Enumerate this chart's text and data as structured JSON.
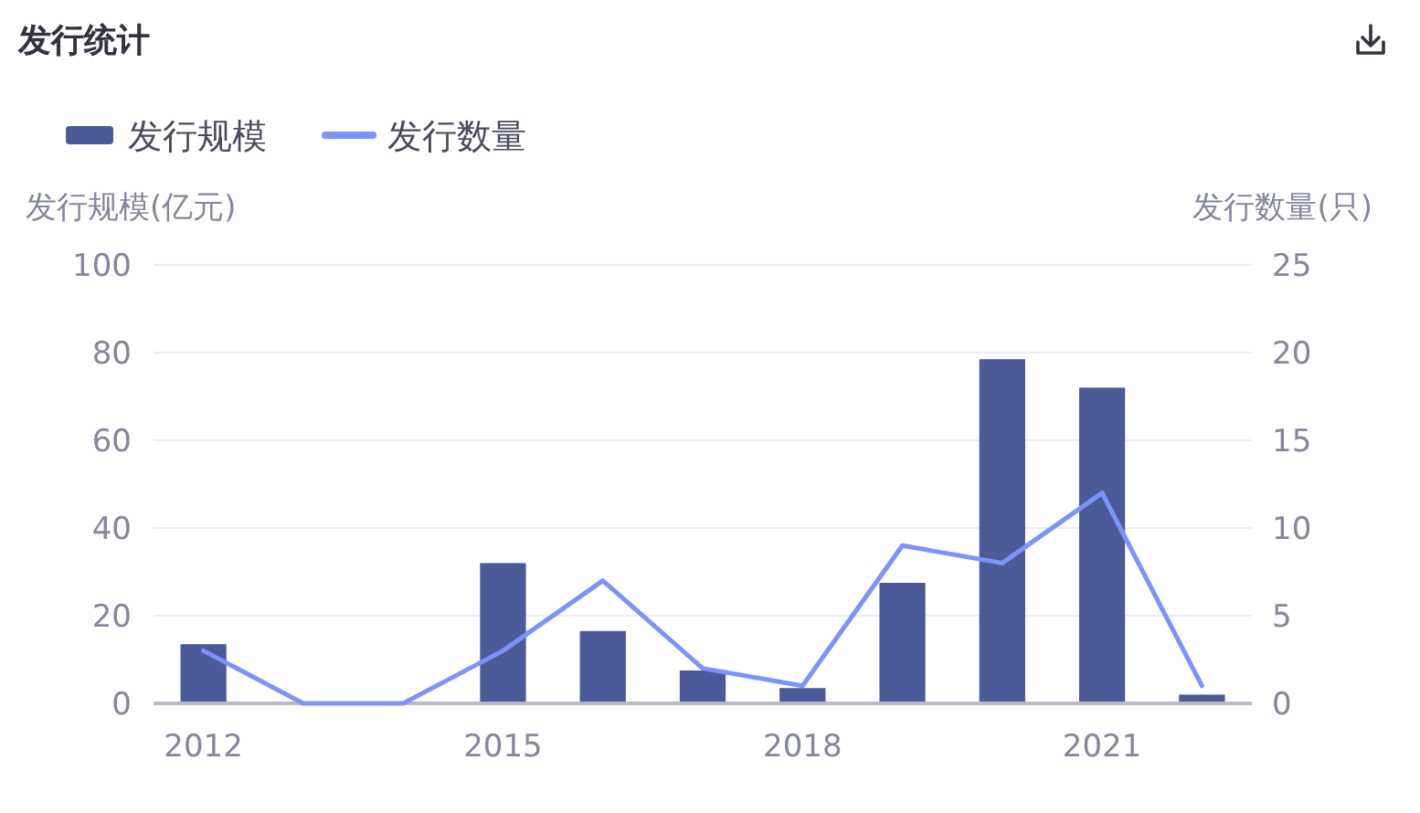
{
  "chart_data": {
    "type": "bar",
    "title": "发行统计",
    "categories": [
      "2012",
      null,
      null,
      "2015",
      null,
      null,
      "2018",
      null,
      null,
      "2021",
      null
    ],
    "series": [
      {
        "name": "发行规模",
        "color": "#4d5a98",
        "values": [
          13.5,
          0,
          0,
          32,
          16.5,
          7.5,
          3.5,
          27.5,
          78.5,
          72,
          2
        ]
      },
      {
        "name": "发行数量",
        "type": "line",
        "axis": "y2",
        "color": "#7b93fb",
        "values": [
          3,
          0,
          0,
          3,
          7,
          2,
          1,
          9,
          8,
          12,
          1
        ]
      }
    ],
    "ylabel": "发行规模(亿元)",
    "y2label": "发行数量(只)",
    "ylim": [
      0,
      100
    ],
    "yticks": [
      0,
      20,
      40,
      60,
      80,
      100
    ],
    "y2lim": [
      0,
      25
    ],
    "y2ticks": [
      0,
      5,
      10,
      15,
      20,
      25
    ],
    "grid": "y",
    "legend": "top left"
  }
}
